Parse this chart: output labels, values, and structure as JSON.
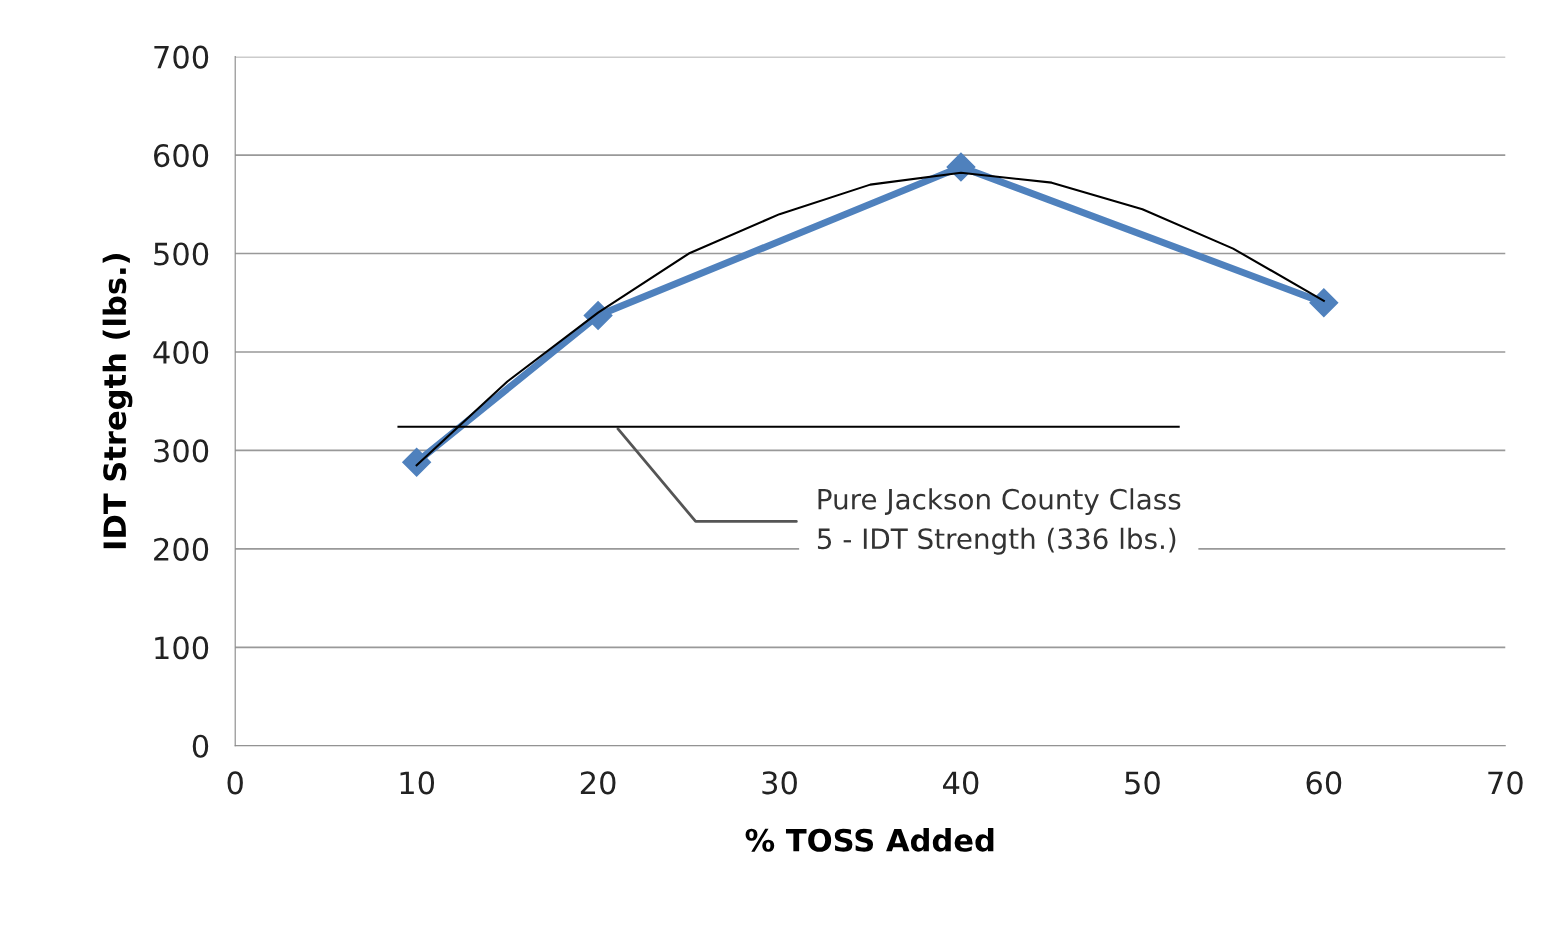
{
  "chart_data": {
    "type": "line",
    "xlabel": "% TOSS Added",
    "ylabel": "IDT Stregth (lbs.)",
    "x": [
      10,
      20,
      40,
      60
    ],
    "series": [
      {
        "color": "#4f81bd",
        "values": [
          288,
          437,
          588,
          450
        ],
        "marker": "diamond"
      },
      {
        "color": "#000000",
        "x": [
          10,
          15,
          20,
          25,
          30,
          35,
          40,
          45,
          50,
          55,
          60
        ],
        "values": [
          285,
          370,
          440,
          500,
          540,
          570,
          582,
          572,
          545,
          505,
          452
        ],
        "marker": "none"
      },
      {
        "color": "#000000",
        "x": [
          9,
          52
        ],
        "values": [
          324,
          324
        ],
        "marker": "none"
      }
    ],
    "annotations": [
      {
        "text": "Pure Jackson County Class\n5 - IDT Strength (336 lbs.)",
        "x": 21,
        "y": 324
      }
    ],
    "xlim": [
      0,
      70
    ],
    "xticks": [
      0,
      10,
      20,
      30,
      40,
      50,
      60,
      70
    ],
    "ylim": [
      0,
      700
    ],
    "yticks": [
      0,
      100,
      200,
      300,
      400,
      500,
      600,
      700
    ],
    "grid": "y",
    "legend": false
  }
}
